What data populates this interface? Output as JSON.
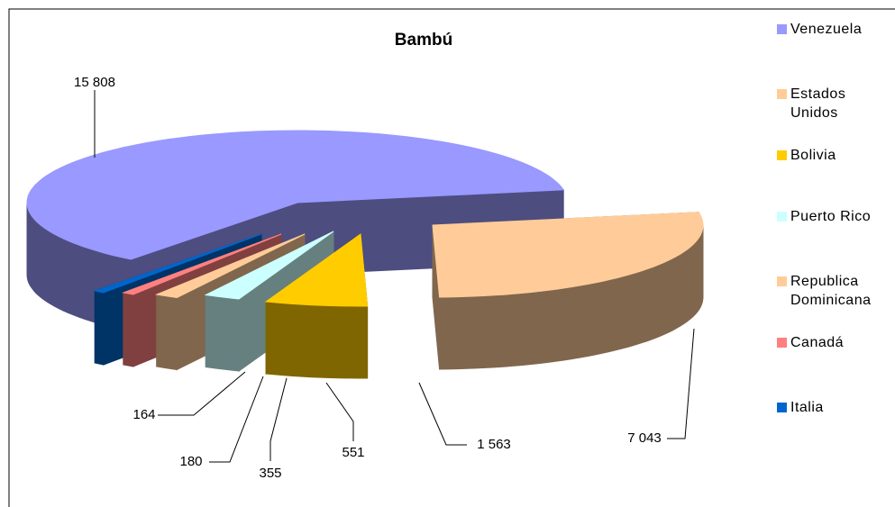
{
  "chart_data": {
    "type": "pie",
    "title": "Bambú",
    "categories": [
      "Venezuela",
      "Estados Unidos",
      "Bolivia",
      "Puerto Rico",
      "Republica Dominicana",
      "Canadá",
      "Italia"
    ],
    "values": [
      15808,
      7043,
      1563,
      551,
      355,
      180,
      164
    ],
    "value_labels": [
      "15 808",
      "7 043",
      "1 563",
      "551",
      "355",
      "180",
      "164"
    ],
    "colors": [
      "#9999ff",
      "#ffcc99",
      "#ffcc00",
      "#ccffff",
      "#ffcc99",
      "#ff8080",
      "#0066cc"
    ],
    "legend": "right"
  }
}
